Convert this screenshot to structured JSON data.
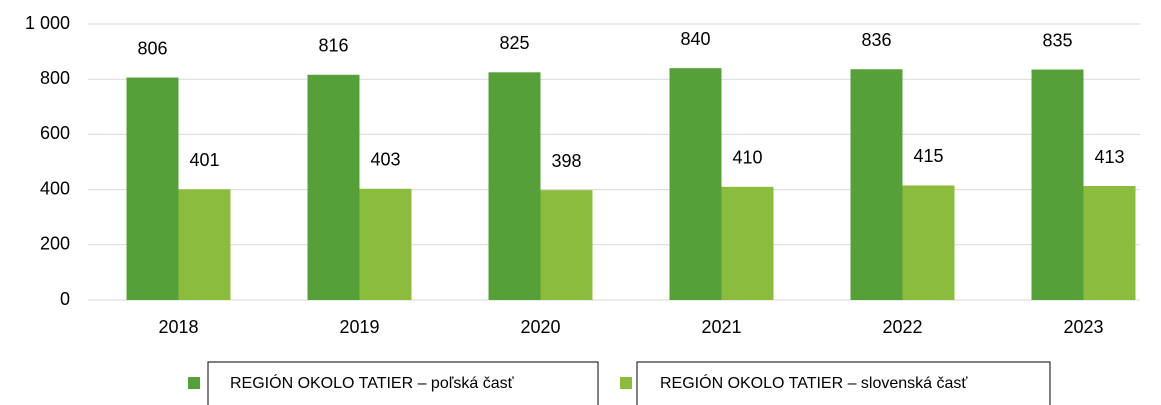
{
  "chart_data": {
    "type": "bar",
    "categories": [
      "2018",
      "2019",
      "2020",
      "2021",
      "2022",
      "2023"
    ],
    "series": [
      {
        "name": "REGIÓN OKOLO TATIER – poľská časť",
        "color": "#56a03a",
        "values": [
          806,
          816,
          825,
          840,
          836,
          835
        ]
      },
      {
        "name": "REGIÓN OKOLO TATIER – slovenská časť",
        "color": "#8cbc3d",
        "values": [
          401,
          403,
          398,
          410,
          415,
          413
        ]
      }
    ],
    "ylim": [
      0,
      1000
    ],
    "yticks": [
      0,
      200,
      400,
      600,
      800,
      {
        "value": 1000,
        "label": "1 000"
      }
    ],
    "grid": true,
    "legend": "bottom"
  }
}
